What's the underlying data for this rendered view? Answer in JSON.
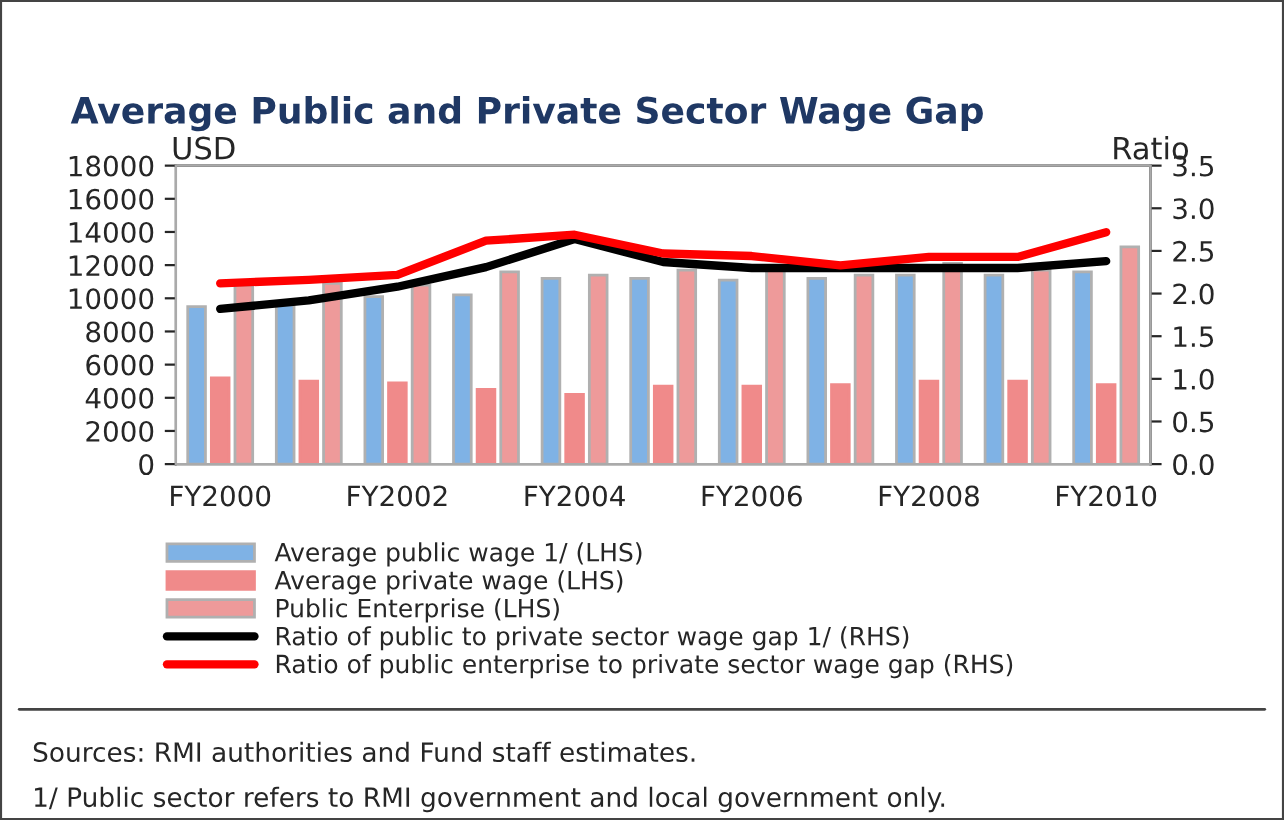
{
  "chart_data": {
    "type": "bar",
    "title": "Average Public and Private Sector Wage Gap",
    "ylabel": "USD",
    "y2label": "Ratio",
    "categories": [
      "FY2000",
      null,
      "FY2002",
      null,
      "FY2004",
      null,
      "FY2006",
      null,
      "FY2008",
      null,
      "FY2010"
    ],
    "series": [
      {
        "name": "Average public wage 1/ (LHS)",
        "color": "#7fb2e5",
        "values": [
          9500,
          9600,
          10100,
          10200,
          11200,
          11200,
          11100,
          11200,
          11400,
          11400,
          11600
        ]
      },
      {
        "name": "Average private wage (LHS)",
        "color": "#f08a8a",
        "values": [
          5200,
          5000,
          4900,
          4500,
          4200,
          4700,
          4700,
          4800,
          5000,
          5000,
          4800
        ]
      },
      {
        "name": "Public Enterprise (LHS)",
        "color": "#ee9a9a",
        "values": [
          10800,
          10900,
          10800,
          11600,
          11400,
          11700,
          11700,
          11400,
          12100,
          11700,
          13100
        ]
      },
      {
        "name": "Ratio of public to private sector wage gap 1/ (RHS)",
        "type": "line",
        "axis": "y2",
        "color": "#000000",
        "values": [
          1.82,
          1.92,
          2.08,
          2.31,
          2.64,
          2.37,
          2.3,
          2.3,
          2.3,
          2.3,
          2.38
        ]
      },
      {
        "name": "Ratio of public enterprise to private sector wage gap (RHS)",
        "type": "line",
        "axis": "y2",
        "color": "#ff0000",
        "values": [
          2.12,
          2.16,
          2.22,
          2.62,
          2.69,
          2.47,
          2.44,
          2.33,
          2.43,
          2.43,
          2.72
        ]
      }
    ],
    "ylim": [
      0,
      18000
    ],
    "yticks": [
      0,
      2000,
      4000,
      6000,
      8000,
      10000,
      12000,
      14000,
      16000,
      18000
    ],
    "y2lim": [
      0,
      3.5
    ],
    "y2ticks": [
      {
        "value": 0,
        "label": "0.0"
      },
      0.5,
      {
        "value": 1,
        "label": "1.0"
      },
      1.5,
      {
        "value": 2,
        "label": "2.0"
      },
      2.5,
      {
        "value": 3,
        "label": "3.0"
      },
      3.5
    ],
    "grid": false,
    "legend": "bottom",
    "annotations": [
      "Sources: RMI authorities and Fund staff estimates.",
      "1/ Public sector refers to RMI government and local government only."
    ]
  }
}
